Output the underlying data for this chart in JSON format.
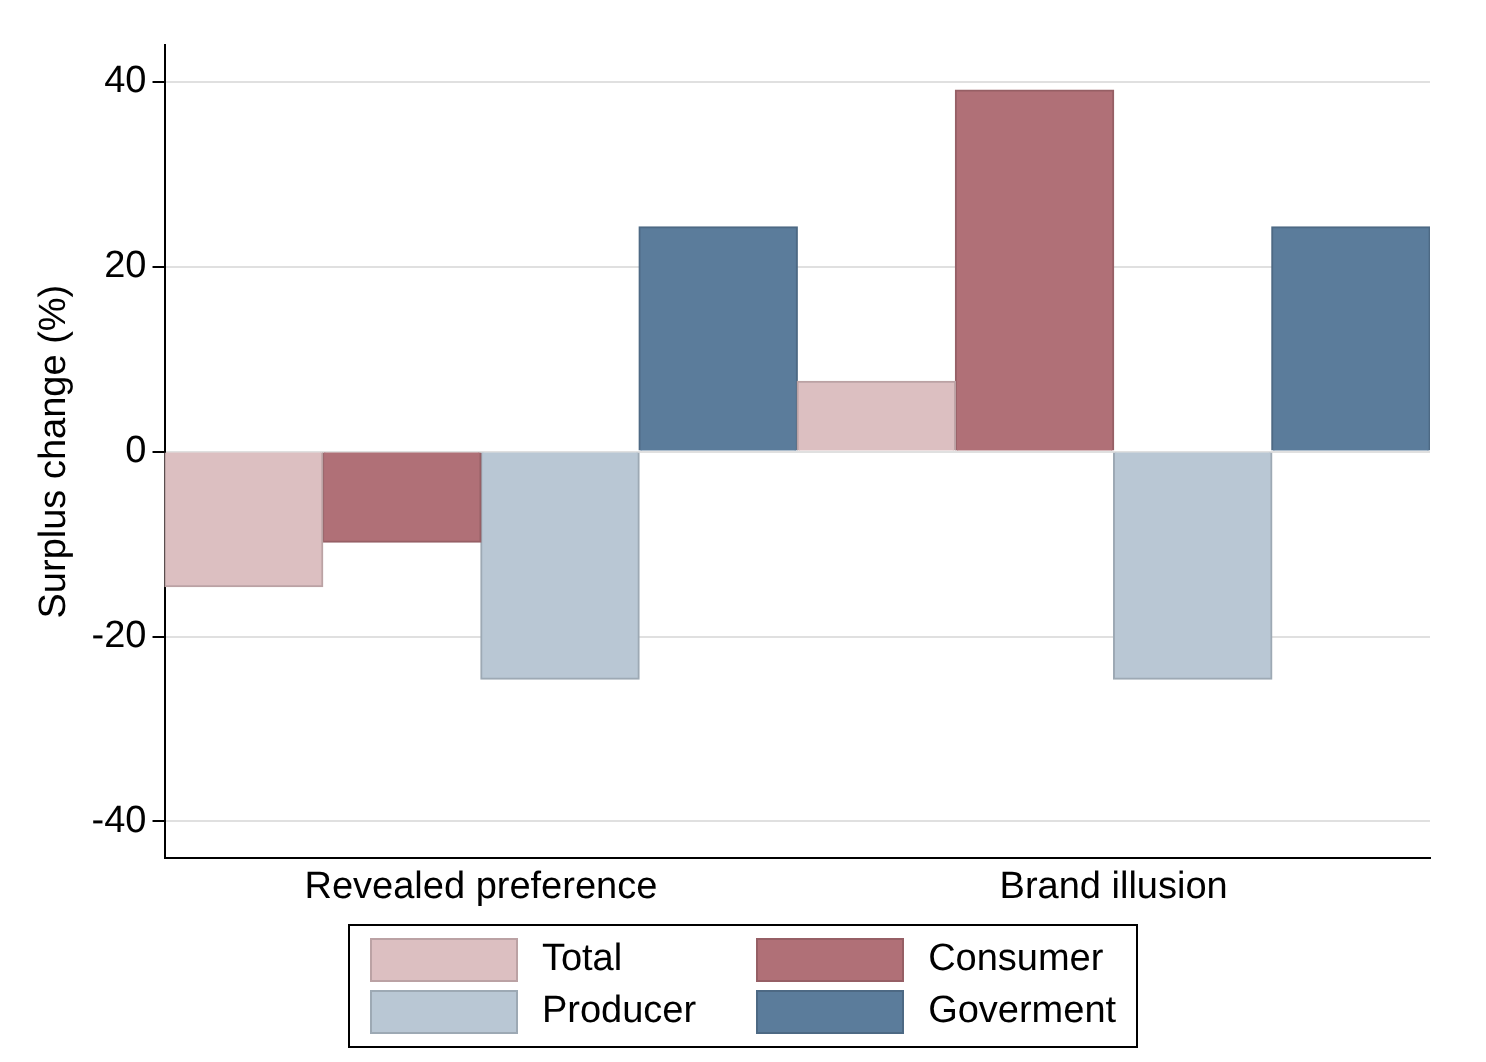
{
  "chart_data": {
    "type": "bar",
    "ylabel": "Surplus change (%)",
    "categories": [
      "Revealed preference",
      "Brand illusion"
    ],
    "series": [
      {
        "name": "Total",
        "color": "#dcbfc1",
        "values": [
          -14.6,
          7.6
        ]
      },
      {
        "name": "Consumer",
        "color": "#b07077",
        "values": [
          -9.8,
          39.1
        ]
      },
      {
        "name": "Producer",
        "color": "#b9c7d4",
        "values": [
          -24.6,
          -24.6
        ]
      },
      {
        "name": "Goverment",
        "color": "#5b7c9b",
        "values": [
          24.3,
          24.3
        ]
      }
    ],
    "ylim": [
      -44,
      44
    ],
    "yticks": [
      -40,
      -20,
      0,
      20,
      40
    ],
    "grid": "y",
    "legend": "bottom"
  }
}
